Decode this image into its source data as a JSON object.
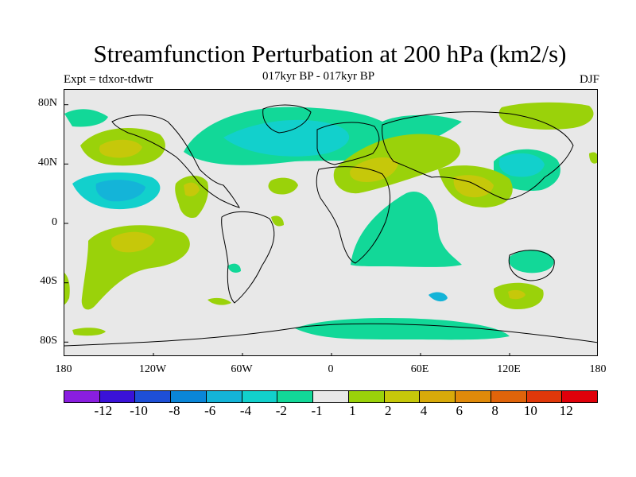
{
  "title": "Streamfunction Perturbation at 200 hPa (km2/s)",
  "left_label": "Expt = tdxor-tdwtr",
  "center_label": "017kyr BP - 017kyr BP",
  "right_label": "DJF",
  "lat_labels": [
    "80N",
    "40N",
    "0",
    "40S",
    "80S"
  ],
  "lon_labels": [
    "180",
    "120W",
    "60W",
    "0",
    "60E",
    "120E",
    "180"
  ],
  "colorbar": {
    "colors": [
      "#8a1ee0",
      "#3a12d8",
      "#1e4fd6",
      "#0a86d8",
      "#14b4d8",
      "#12d0cc",
      "#12d898",
      "#e8e8e8",
      "#9ad20a",
      "#c6c80a",
      "#d8aa0a",
      "#e08a0a",
      "#e0640a",
      "#e0380a",
      "#e0000a"
    ],
    "labels": [
      "-12",
      "-10",
      "-8",
      "-6",
      "-4",
      "-2",
      "-1",
      "1",
      "2",
      "4",
      "6",
      "8",
      "10",
      "12"
    ]
  },
  "colors": {
    "neutral": "#e8e8e8",
    "neg1": "#12d898",
    "neg2": "#12d0cc",
    "neg3": "#14b4d8",
    "pos1": "#9ad20a",
    "pos2": "#c6c80a",
    "pos3": "#d8aa0a"
  }
}
